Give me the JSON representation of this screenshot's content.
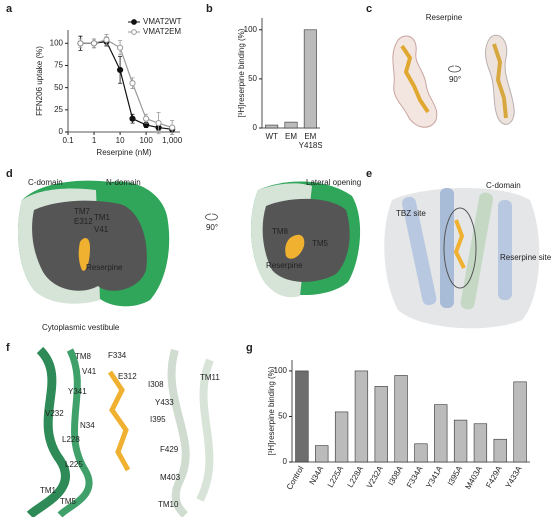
{
  "panel_labels": [
    "a",
    "b",
    "c",
    "d",
    "e",
    "f",
    "g"
  ],
  "chart_data": [
    {
      "type": "line",
      "xlabel": "Reserpine (nM)",
      "ylabel": "FFN206 uptake (%)",
      "log_x": true,
      "x": [
        0.3,
        1,
        3,
        10,
        30,
        100,
        300,
        1000
      ],
      "xlim": [
        0.1,
        2000
      ],
      "xticks": [
        0.1,
        1,
        10,
        100,
        {
          "value": 1000,
          "label": "1,000"
        }
      ],
      "ylim": [
        0,
        115
      ],
      "yticks": [
        0,
        25,
        50,
        75,
        100
      ],
      "grid": false,
      "legend": "upper right",
      "series": [
        {
          "name": "VMAT2WT",
          "color": "#111111",
          "marker": "filled",
          "values": [
            100,
            100,
            102,
            70,
            15,
            8,
            5,
            3
          ],
          "errors": [
            8,
            5,
            5,
            15,
            5,
            3,
            3,
            3
          ]
        },
        {
          "name": "VMAT2EM",
          "color": "#999999",
          "marker": "open",
          "values": [
            100,
            100,
            104,
            95,
            55,
            15,
            10,
            5
          ],
          "errors": [
            5,
            5,
            6,
            8,
            6,
            5,
            12,
            8
          ]
        }
      ]
    },
    {
      "type": "bar",
      "ylabel": "[³H]reserpine binding (%)",
      "categories": [
        "WT",
        "EM",
        "EM Y418S"
      ],
      "values": [
        3,
        6,
        100
      ],
      "color": "#bbbbbb",
      "ylim": [
        0,
        112
      ],
      "yticks": [
        0,
        50,
        100
      ],
      "grid": false
    },
    {
      "type": "bar",
      "ylabel": "[³H]reserpine binding (%)",
      "categories": [
        "Control",
        "N34A",
        "L225A",
        "L228A",
        "V232A",
        "I308A",
        "F334A",
        "Y341A",
        "I395A",
        "M403A",
        "F429A",
        "Y433A"
      ],
      "values": [
        100,
        18,
        55,
        100,
        83,
        95,
        20,
        63,
        46,
        42,
        25,
        88
      ],
      "colors": [
        "#6e6e6e",
        "#bbbbbb",
        "#bbbbbb",
        "#bbbbbb",
        "#bbbbbb",
        "#bbbbbb",
        "#bbbbbb",
        "#bbbbbb",
        "#bbbbbb",
        "#bbbbbb",
        "#bbbbbb",
        "#bbbbbb"
      ],
      "ylim": [
        0,
        112
      ],
      "yticks": [
        0,
        50,
        100
      ],
      "grid": false
    }
  ],
  "panel_c": {
    "title": "Reserpine",
    "rotation": "90°"
  },
  "panel_d": {
    "left": [
      "C-domain",
      "N-domain",
      "TM7",
      "E312",
      "TM1",
      "V41",
      "Reserpine"
    ],
    "rotation": "90°",
    "right": [
      "Lateral opening",
      "TM8",
      "TM5",
      "Reserpine"
    ],
    "vestibule": "Cytoplasmic vestibule"
  },
  "panel_e": {
    "domain": "C-domain",
    "tbz": "TBZ site",
    "reserpine": "Reserpine site"
  },
  "panel_f": {
    "labels": [
      "TM8",
      "F334",
      "V41",
      "E312",
      "I308",
      "TM11",
      "Y341",
      "Y433",
      "V232",
      "I395",
      "N34",
      "L228",
      "F429",
      "L225",
      "M403",
      "TM1",
      "TM5",
      "TM10"
    ]
  }
}
